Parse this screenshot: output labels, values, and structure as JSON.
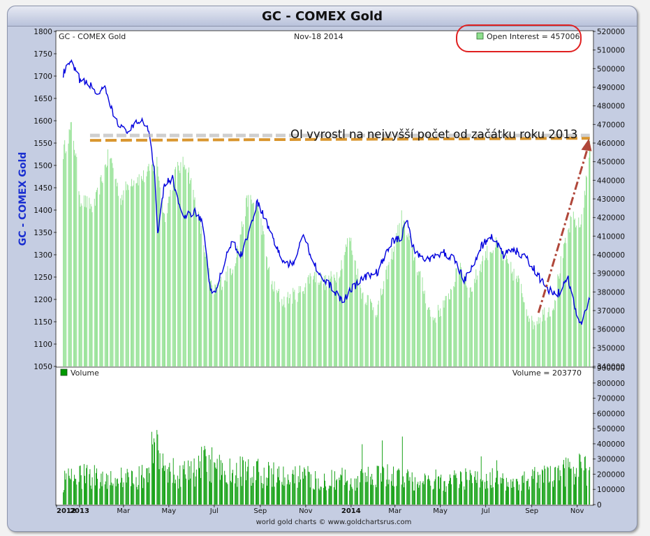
{
  "title": "GC - COMEX Gold",
  "credit": "world gold charts © www.goldchartsrus.com",
  "colors": {
    "price_line": "#0000dd",
    "open_interest": "#8fe08f",
    "volume": "#009900",
    "annotation_line": "#d9962f",
    "arrow": "#b0473a",
    "highlight": "#e02020"
  },
  "chart_data": [
    {
      "type": "line",
      "panel": "price",
      "label_left": "GC - COMEX Gold",
      "date_label": "Nov-18  2014",
      "ylabel": "GC - COMEX Gold",
      "ylim": [
        1050,
        1800
      ],
      "yticks": [
        1050,
        1100,
        1150,
        1200,
        1250,
        1300,
        1350,
        1400,
        1450,
        1500,
        1550,
        1600,
        1650,
        1700,
        1750,
        1800
      ],
      "x_labels": [
        "2012",
        "2013",
        "Mar",
        "May",
        "Jul",
        "Sep",
        "Nov",
        "2014",
        "Mar",
        "May",
        "Jul",
        "Sep",
        "Nov"
      ],
      "series": [
        {
          "kind": "price",
          "points": [
            [
              "2012-12-10",
              1705
            ],
            [
              "2012-12-20",
              1730
            ],
            [
              "2013-01-02",
              1690
            ],
            [
              "2013-01-15",
              1680
            ],
            [
              "2013-01-25",
              1660
            ],
            [
              "2013-02-04",
              1670
            ],
            [
              "2013-02-15",
              1615
            ],
            [
              "2013-02-28",
              1580
            ],
            [
              "2013-03-10",
              1578
            ],
            [
              "2013-03-25",
              1605
            ],
            [
              "2013-04-05",
              1575
            ],
            [
              "2013-04-12",
              1480
            ],
            [
              "2013-04-16",
              1350
            ],
            [
              "2013-04-25",
              1460
            ],
            [
              "2013-05-06",
              1470
            ],
            [
              "2013-05-20",
              1380
            ],
            [
              "2013-06-05",
              1400
            ],
            [
              "2013-06-15",
              1375
            ],
            [
              "2013-06-25",
              1230
            ],
            [
              "2013-07-01",
              1210
            ],
            [
              "2013-07-10",
              1255
            ],
            [
              "2013-07-25",
              1335
            ],
            [
              "2013-08-05",
              1295
            ],
            [
              "2013-08-20",
              1370
            ],
            [
              "2013-08-28",
              1420
            ],
            [
              "2013-09-10",
              1370
            ],
            [
              "2013-09-20",
              1330
            ],
            [
              "2013-10-01",
              1285
            ],
            [
              "2013-10-15",
              1275
            ],
            [
              "2013-10-28",
              1350
            ],
            [
              "2013-11-10",
              1290
            ],
            [
              "2013-11-25",
              1240
            ],
            [
              "2013-12-05",
              1230
            ],
            [
              "2013-12-20",
              1195
            ],
            [
              "2014-01-02",
              1225
            ],
            [
              "2014-01-20",
              1250
            ],
            [
              "2014-02-05",
              1260
            ],
            [
              "2014-02-25",
              1330
            ],
            [
              "2014-03-10",
              1340
            ],
            [
              "2014-03-17",
              1385
            ],
            [
              "2014-03-25",
              1315
            ],
            [
              "2014-04-05",
              1295
            ],
            [
              "2014-04-20",
              1290
            ],
            [
              "2014-05-05",
              1305
            ],
            [
              "2014-05-20",
              1290
            ],
            [
              "2014-06-02",
              1245
            ],
            [
              "2014-06-15",
              1275
            ],
            [
              "2014-06-25",
              1320
            ],
            [
              "2014-07-10",
              1340
            ],
            [
              "2014-07-25",
              1300
            ],
            [
              "2014-08-10",
              1310
            ],
            [
              "2014-08-25",
              1290
            ],
            [
              "2014-09-05",
              1265
            ],
            [
              "2014-09-20",
              1225
            ],
            [
              "2014-10-05",
              1210
            ],
            [
              "2014-10-20",
              1245
            ],
            [
              "2014-10-31",
              1170
            ],
            [
              "2014-11-07",
              1145
            ],
            [
              "2014-11-14",
              1185
            ],
            [
              "2014-11-18",
              1200
            ]
          ]
        },
        {
          "kind": "open_interest",
          "legend": "Open Interest = 457006",
          "ylim": [
            340000,
            520000
          ],
          "yticks": [
            340000,
            350000,
            360000,
            370000,
            380000,
            390000,
            400000,
            410000,
            420000,
            430000,
            440000,
            450000,
            460000,
            470000,
            480000,
            490000,
            500000,
            510000,
            520000
          ],
          "points": [
            [
              "2012-12-10",
              455000
            ],
            [
              "2012-12-22",
              470000
            ],
            [
              "2013-01-02",
              430000
            ],
            [
              "2013-01-20",
              425000
            ],
            [
              "2013-02-10",
              455000
            ],
            [
              "2013-02-25",
              430000
            ],
            [
              "2013-03-10",
              440000
            ],
            [
              "2013-03-30",
              442000
            ],
            [
              "2013-04-15",
              450000
            ],
            [
              "2013-04-25",
              420000
            ],
            [
              "2013-05-10",
              445000
            ],
            [
              "2013-05-25",
              450000
            ],
            [
              "2013-06-15",
              410000
            ],
            [
              "2013-06-28",
              380000
            ],
            [
              "2013-07-10",
              385000
            ],
            [
              "2013-07-28",
              395000
            ],
            [
              "2013-08-15",
              430000
            ],
            [
              "2013-08-30",
              425000
            ],
            [
              "2013-09-15",
              385000
            ],
            [
              "2013-10-01",
              375000
            ],
            [
              "2013-10-25",
              380000
            ],
            [
              "2013-11-10",
              390000
            ],
            [
              "2013-11-28",
              385000
            ],
            [
              "2013-12-15",
              390000
            ],
            [
              "2013-12-30",
              410000
            ],
            [
              "2014-01-15",
              380000
            ],
            [
              "2014-02-05",
              370000
            ],
            [
              "2014-02-25",
              400000
            ],
            [
              "2014-03-10",
              420000
            ],
            [
              "2014-03-30",
              395000
            ],
            [
              "2014-04-20",
              365000
            ],
            [
              "2014-05-10",
              375000
            ],
            [
              "2014-05-28",
              395000
            ],
            [
              "2014-06-10",
              380000
            ],
            [
              "2014-06-30",
              400000
            ],
            [
              "2014-07-15",
              405000
            ],
            [
              "2014-07-30",
              395000
            ],
            [
              "2014-08-15",
              385000
            ],
            [
              "2014-09-01",
              363000
            ],
            [
              "2014-09-15",
              368000
            ],
            [
              "2014-09-30",
              372000
            ],
            [
              "2014-10-10",
              395000
            ],
            [
              "2014-10-25",
              420000
            ],
            [
              "2014-11-05",
              415000
            ],
            [
              "2014-11-12",
              435000
            ],
            [
              "2014-11-18",
              457006
            ]
          ]
        }
      ],
      "annotations": [
        {
          "kind": "text",
          "text": "OI vyrostl na nejvyšší počet od začátku roku 2013"
        },
        {
          "kind": "hline",
          "from": "2013-01-15",
          "to": "2014-11-18",
          "price": 1556
        },
        {
          "kind": "arrow",
          "from": [
            "2014-09-10",
            1170
          ],
          "to": [
            "2014-11-15",
            1560
          ]
        }
      ]
    },
    {
      "type": "bar",
      "panel": "volume",
      "legend": "Volume",
      "value_label": "Volume = 203770",
      "ylim": [
        0,
        900000
      ],
      "yticks": [
        0,
        100000,
        200000,
        300000,
        400000,
        500000,
        600000,
        700000,
        800000,
        900000
      ],
      "points": [
        [
          "2012-12-10",
          160000
        ],
        [
          "2012-12-22",
          180000
        ],
        [
          "2013-01-10",
          200000
        ],
        [
          "2013-02-10",
          190000
        ],
        [
          "2013-03-10",
          180000
        ],
        [
          "2013-03-30",
          200000
        ],
        [
          "2013-04-15",
          480000
        ],
        [
          "2013-04-25",
          320000
        ],
        [
          "2013-05-10",
          210000
        ],
        [
          "2013-06-01",
          220000
        ],
        [
          "2013-06-20",
          300000
        ],
        [
          "2013-07-10",
          230000
        ],
        [
          "2013-08-10",
          230000
        ],
        [
          "2013-09-10",
          210000
        ],
        [
          "2013-10-10",
          180000
        ],
        [
          "2013-11-10",
          190000
        ],
        [
          "2013-12-10",
          180000
        ],
        [
          "2014-01-10",
          170000
        ],
        [
          "2014-02-10",
          190000
        ],
        [
          "2014-03-10",
          200000
        ],
        [
          "2014-04-10",
          170000
        ],
        [
          "2014-05-10",
          160000
        ],
        [
          "2014-06-10",
          180000
        ],
        [
          "2014-07-10",
          180000
        ],
        [
          "2014-08-10",
          160000
        ],
        [
          "2014-09-10",
          180000
        ],
        [
          "2014-10-10",
          210000
        ],
        [
          "2014-11-05",
          260000
        ],
        [
          "2014-11-18",
          203770
        ]
      ]
    }
  ]
}
